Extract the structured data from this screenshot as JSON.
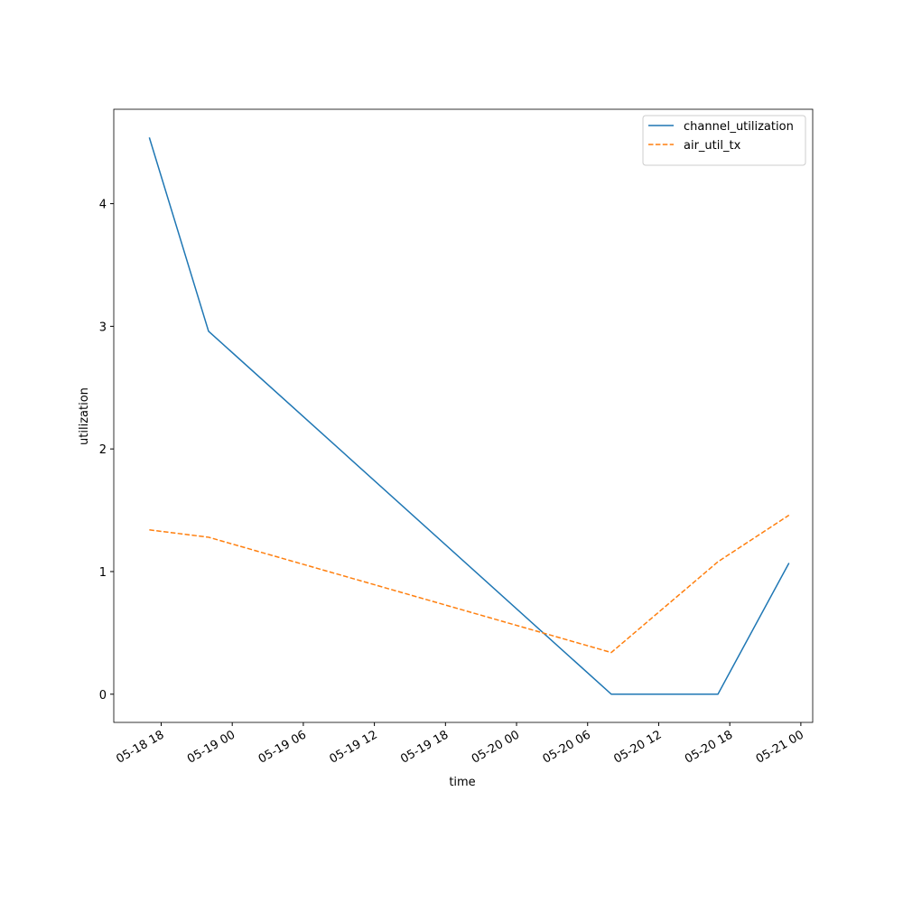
{
  "chart_data": {
    "type": "line",
    "x_label": "time",
    "y_label": "utilization",
    "x": [
      "05-18 17",
      "05-18 22",
      "05-20 08",
      "05-20 17",
      "05-20 23"
    ],
    "series": [
      {
        "name": "channel_utilization",
        "color": "#1f77b4",
        "dash": "solid",
        "values": [
          4.54,
          2.96,
          0,
          0,
          1.07
        ]
      },
      {
        "name": "air_util_tx",
        "color": "#ff7f0e",
        "dash": "dashed",
        "values": [
          1.34,
          1.28,
          0.34,
          1.08,
          1.46
        ]
      }
    ],
    "xlim": [
      "05-18 14",
      "05-21 01"
    ],
    "xticks": [
      "05-18 18",
      "05-19 00",
      "05-19 06",
      "05-19 12",
      "05-19 18",
      "05-20 00",
      "05-20 06",
      "05-20 12",
      "05-20 18",
      "05-21 00"
    ],
    "ylim": [
      -0.23,
      4.77
    ],
    "yticks": [
      0,
      1,
      2,
      3,
      4
    ],
    "grid": false,
    "legend": "upper-right"
  }
}
